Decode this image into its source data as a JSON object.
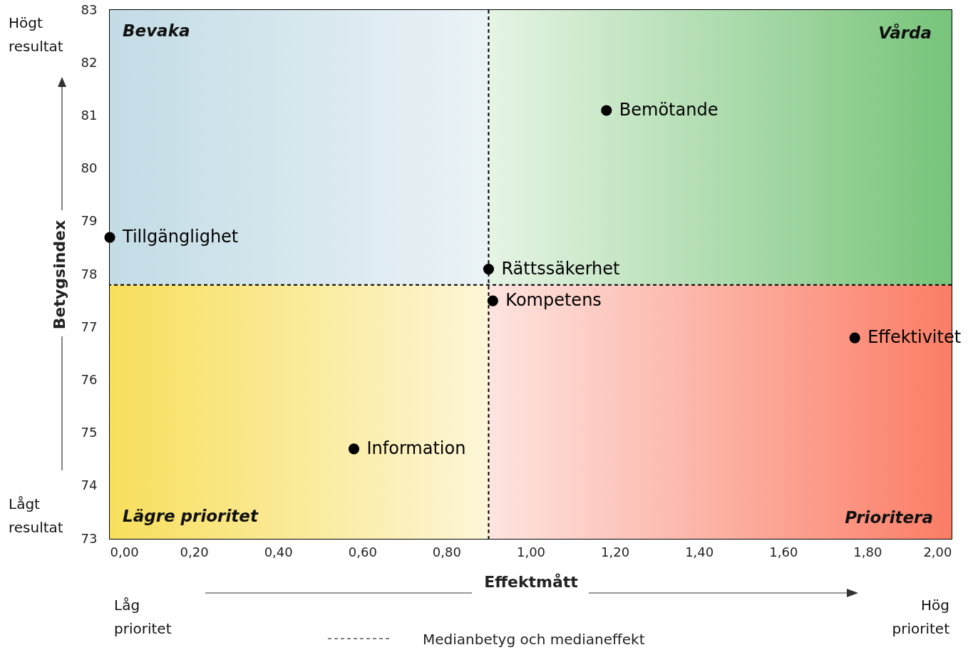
{
  "chart_data": {
    "type": "scatter",
    "xlabel": "Effektmått",
    "ylabel": "Betygsindex",
    "xlim": [
      0,
      2
    ],
    "ylim": [
      73,
      83
    ],
    "xticks": [
      {
        "value": 0,
        "label": "0,00"
      },
      {
        "value": 0.2,
        "label": "0,20"
      },
      {
        "value": 0.4,
        "label": "0,40"
      },
      {
        "value": 0.6,
        "label": "0,60"
      },
      {
        "value": 0.8,
        "label": "0,80"
      },
      {
        "value": 1,
        "label": "1,00"
      },
      {
        "value": 1.2,
        "label": "1,20"
      },
      {
        "value": 1.4,
        "label": "1,40"
      },
      {
        "value": 1.6,
        "label": "1,60"
      },
      {
        "value": 1.8,
        "label": "1,80"
      },
      {
        "value": 2,
        "label": "2,00"
      }
    ],
    "yticks": [
      73,
      74,
      75,
      76,
      77,
      78,
      79,
      80,
      81,
      82,
      83
    ],
    "series": [
      {
        "name": "Tillgänglighet",
        "color": "#000000",
        "x": [
          0.0
        ],
        "values": [
          78.7
        ]
      },
      {
        "name": "Rättssäkerhet",
        "color": "#000000",
        "x": [
          0.9
        ],
        "values": [
          78.1
        ]
      },
      {
        "name": "Kompetens",
        "color": "#000000",
        "x": [
          0.91
        ],
        "values": [
          77.5
        ]
      },
      {
        "name": "Bemötande",
        "color": "#000000",
        "x": [
          1.18
        ],
        "values": [
          81.1
        ]
      },
      {
        "name": "Effektivitet",
        "color": "#000000",
        "x": [
          1.77
        ],
        "values": [
          76.8
        ]
      },
      {
        "name": "Information",
        "color": "#000000",
        "x": [
          0.58
        ],
        "values": [
          74.7
        ]
      }
    ],
    "ref_lines": [
      {
        "axis": "x",
        "value": 0.9,
        "label": null,
        "color": "#000000",
        "line_style": "dashed"
      },
      {
        "axis": "y",
        "value": 77.8,
        "label": "Medianbetyg och medianeffekt",
        "color": "#000000",
        "line_style": "dashed"
      }
    ],
    "annotations": [
      "Bevaka",
      "Vårda",
      "Lägre prioritet",
      "Prioritera",
      "Högt resultat",
      "Lågt resultat",
      "Låg prioritet",
      "Hög prioritet"
    ],
    "marker": "circle",
    "grid": false,
    "legend": "bottom"
  }
}
